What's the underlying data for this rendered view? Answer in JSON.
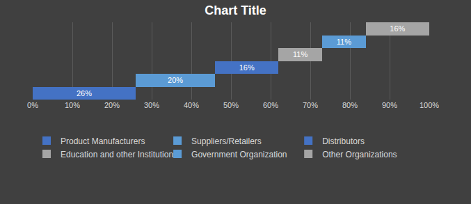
{
  "chart_data": {
    "type": "bar",
    "title": "Chart Title",
    "orientation": "horizontal",
    "stacked": true,
    "data_labels": true,
    "tick_labels": "x",
    "grid": true,
    "legend": "bottom",
    "xlim": [
      0,
      100
    ],
    "xticks": [
      {
        "value": 0,
        "label": "0%"
      },
      {
        "value": 10,
        "label": "10%"
      },
      {
        "value": 20,
        "label": "20%"
      },
      {
        "value": 30,
        "label": "30%"
      },
      {
        "value": 40,
        "label": "40%"
      },
      {
        "value": 50,
        "label": "50%"
      },
      {
        "value": 60,
        "label": "60%"
      },
      {
        "value": 70,
        "label": "70%"
      },
      {
        "value": 80,
        "label": "80%"
      },
      {
        "value": 90,
        "label": "90%"
      },
      {
        "value": 100,
        "label": "100%"
      }
    ],
    "series": [
      {
        "name": "Product Manufacturers",
        "color": "#4472c4",
        "values": [
          26
        ],
        "value_labels": [
          "26%"
        ]
      },
      {
        "name": "Suppliers/Retailers",
        "color": "#5b9bd5",
        "values": [
          20
        ],
        "value_labels": [
          "20%"
        ]
      },
      {
        "name": "Distributors",
        "color": "#4472c4",
        "values": [
          16
        ],
        "value_labels": [
          "16%"
        ]
      },
      {
        "name": "Education and other Institutions",
        "color": "#a5a5a5",
        "values": [
          11
        ],
        "value_labels": [
          "11%"
        ]
      },
      {
        "name": "Government Organization",
        "color": "#5b9bd5",
        "values": [
          11
        ],
        "value_labels": [
          "11%"
        ]
      },
      {
        "name": "Other Organizations",
        "color": "#a5a5a5",
        "values": [
          16
        ],
        "value_labels": [
          "16%"
        ]
      }
    ]
  }
}
